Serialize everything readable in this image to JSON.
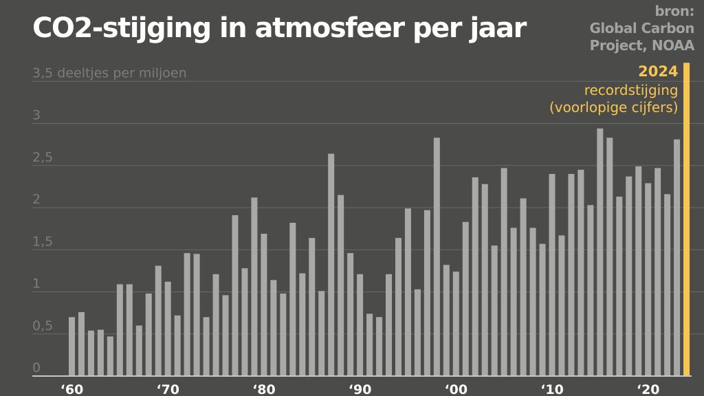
{
  "title": "CO2-stijging in atmosfeer per jaar",
  "source": {
    "label": "bron:",
    "line1": "Global Carbon",
    "line2": "Project, NOAA"
  },
  "chart_data": {
    "type": "bar",
    "title": "CO2-stijging in atmosfeer per jaar",
    "ylabel": "deeltjes per miljoen",
    "ylim": [
      0,
      3.5
    ],
    "yticks": [
      0,
      0.5,
      1,
      1.5,
      2,
      2.5,
      3,
      3.5
    ],
    "ytick_labels": [
      "0",
      "0,5",
      "1",
      "1,5",
      "2",
      "2,5",
      "3",
      "3,5 deeltjes per miljoen"
    ],
    "xtick_labels": [
      {
        "year": 1960,
        "label": "‘60"
      },
      {
        "year": 1970,
        "label": "‘70"
      },
      {
        "year": 1980,
        "label": "‘80"
      },
      {
        "year": 1990,
        "label": "‘90"
      },
      {
        "year": 2000,
        "label": "‘00"
      },
      {
        "year": 2010,
        "label": "‘10"
      },
      {
        "year": 2020,
        "label": "‘20"
      }
    ],
    "grid": true,
    "categories": [
      1960,
      1961,
      1962,
      1963,
      1964,
      1965,
      1966,
      1967,
      1968,
      1969,
      1970,
      1971,
      1972,
      1973,
      1974,
      1975,
      1976,
      1977,
      1978,
      1979,
      1980,
      1981,
      1982,
      1983,
      1984,
      1985,
      1986,
      1987,
      1988,
      1989,
      1990,
      1991,
      1992,
      1993,
      1994,
      1995,
      1996,
      1997,
      1998,
      1999,
      2000,
      2001,
      2002,
      2003,
      2004,
      2005,
      2006,
      2007,
      2008,
      2009,
      2010,
      2011,
      2012,
      2013,
      2014,
      2015,
      2016,
      2017,
      2018,
      2019,
      2020,
      2021,
      2022,
      2023,
      2024
    ],
    "values": [
      0.7,
      0.76,
      0.54,
      0.55,
      0.47,
      1.09,
      1.09,
      0.6,
      0.98,
      1.31,
      1.12,
      0.72,
      1.46,
      1.45,
      0.7,
      1.21,
      0.96,
      1.91,
      1.28,
      2.12,
      1.69,
      1.14,
      0.98,
      1.82,
      1.22,
      1.64,
      1.01,
      2.64,
      2.15,
      1.46,
      1.21,
      0.74,
      0.7,
      1.21,
      1.64,
      1.99,
      1.03,
      1.97,
      2.83,
      1.32,
      1.24,
      1.83,
      2.36,
      2.28,
      1.55,
      2.47,
      1.76,
      2.11,
      1.76,
      1.57,
      2.4,
      1.67,
      2.4,
      2.45,
      2.03,
      2.94,
      2.83,
      2.13,
      2.37,
      2.49,
      2.29,
      2.47,
      2.16,
      2.81,
      3.72
    ],
    "highlight": {
      "year": 2024,
      "label": "2024",
      "line1": "recordstijging",
      "line2": "(voorlopige cijfers)"
    },
    "colors": {
      "bar": "#a9a9a7",
      "highlight": "#f7c652",
      "grid": "#6a6a68",
      "tick": "#7c7c7a",
      "axis": "#c8c8c6",
      "background": "#4b4b49"
    }
  }
}
